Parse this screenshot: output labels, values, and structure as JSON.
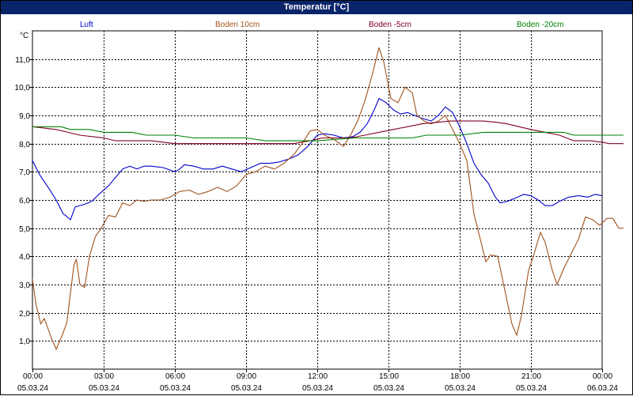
{
  "window": {
    "title": "Temperatur [°C]"
  },
  "colors": {
    "titlebar": "#0a246a",
    "grid": "#000000"
  },
  "chart_data": {
    "type": "line",
    "title": "Temperatur [°C]",
    "ylabel": "°C",
    "xlabel": "",
    "ylim": [
      0,
      12
    ],
    "xlim": [
      0,
      24
    ],
    "grid": true,
    "legend_position": "top",
    "y_ticks": [
      {
        "value": 1,
        "label": "1,0"
      },
      {
        "value": 2,
        "label": "2,0"
      },
      {
        "value": 3,
        "label": "3,0"
      },
      {
        "value": 4,
        "label": "4,0"
      },
      {
        "value": 5,
        "label": "5,0"
      },
      {
        "value": 6,
        "label": "6,0"
      },
      {
        "value": 7,
        "label": "7,0"
      },
      {
        "value": 8,
        "label": "8,0"
      },
      {
        "value": 9,
        "label": "9,0"
      },
      {
        "value": 10,
        "label": "10,0"
      },
      {
        "value": 11,
        "label": "11,0"
      }
    ],
    "x_ticks": [
      {
        "value": 0,
        "time": "00:00",
        "date": "05.03.24"
      },
      {
        "value": 3,
        "time": "03:00",
        "date": "05.03.24"
      },
      {
        "value": 6,
        "time": "06:00",
        "date": "05.03.24"
      },
      {
        "value": 9,
        "time": "09:00",
        "date": "05.03.24"
      },
      {
        "value": 12,
        "time": "12:00",
        "date": "05.03.24"
      },
      {
        "value": 15,
        "time": "15:00",
        "date": "05.03.24"
      },
      {
        "value": 18,
        "time": "18:00",
        "date": "05.03.24"
      },
      {
        "value": 21,
        "time": "21:00",
        "date": "05.03.24"
      },
      {
        "value": 24,
        "time": "00:00",
        "date": "06.03.24"
      }
    ],
    "series": [
      {
        "name": "Luft",
        "color": "#0000cc",
        "points": [
          [
            0,
            7.4
          ],
          [
            0.3,
            6.9
          ],
          [
            0.7,
            6.4
          ],
          [
            1,
            6
          ],
          [
            1.3,
            5.5
          ],
          [
            1.4,
            5.45
          ],
          [
            1.6,
            5.3
          ],
          [
            1.8,
            5.75
          ],
          [
            2.2,
            5.85
          ],
          [
            2.5,
            5.95
          ],
          [
            2.8,
            6.2
          ],
          [
            3.2,
            6.5
          ],
          [
            3.5,
            6.8
          ],
          [
            3.7,
            7.0
          ],
          [
            3.8,
            7.1
          ],
          [
            4.1,
            7.2
          ],
          [
            4.4,
            7.1
          ],
          [
            4.7,
            7.2
          ],
          [
            5,
            7.2
          ],
          [
            5.5,
            7.15
          ],
          [
            6,
            7.0
          ],
          [
            6.2,
            7.1
          ],
          [
            6.4,
            7.25
          ],
          [
            6.8,
            7.2
          ],
          [
            7.2,
            7.1
          ],
          [
            7.6,
            7.1
          ],
          [
            8.0,
            7.2
          ],
          [
            8.4,
            7.1
          ],
          [
            8.8,
            7.0
          ],
          [
            9.2,
            7.15
          ],
          [
            9.6,
            7.3
          ],
          [
            10.0,
            7.3
          ],
          [
            10.4,
            7.35
          ],
          [
            10.8,
            7.45
          ],
          [
            11.2,
            7.6
          ],
          [
            11.6,
            7.9
          ],
          [
            12.0,
            8.3
          ],
          [
            12.3,
            8.35
          ],
          [
            12.7,
            8.3
          ],
          [
            13.1,
            8.2
          ],
          [
            13.5,
            8.25
          ],
          [
            13.8,
            8.4
          ],
          [
            14.1,
            8.7
          ],
          [
            14.4,
            9.2
          ],
          [
            14.6,
            9.6
          ],
          [
            14.9,
            9.45
          ],
          [
            15.2,
            9.2
          ],
          [
            15.5,
            9.05
          ],
          [
            15.8,
            9.1
          ],
          [
            16.1,
            9.0
          ],
          [
            16.4,
            8.9
          ],
          [
            16.8,
            8.8
          ],
          [
            17.1,
            9.0
          ],
          [
            17.4,
            9.3
          ],
          [
            17.7,
            9.1
          ],
          [
            18.0,
            8.6
          ],
          [
            18.3,
            8.0
          ],
          [
            18.6,
            7.3
          ],
          [
            18.9,
            6.9
          ],
          [
            19.2,
            6.6
          ],
          [
            19.5,
            6.1
          ],
          [
            19.7,
            5.9
          ],
          [
            20.0,
            5.95
          ],
          [
            20.3,
            6.05
          ],
          [
            20.7,
            6.2
          ],
          [
            21.0,
            6.15
          ],
          [
            21.3,
            6.0
          ],
          [
            21.6,
            5.8
          ],
          [
            21.9,
            5.8
          ],
          [
            22.2,
            5.95
          ],
          [
            22.6,
            6.1
          ],
          [
            23.0,
            6.15
          ],
          [
            23.4,
            6.1
          ],
          [
            23.7,
            6.2
          ],
          [
            24,
            6.15
          ]
        ]
      },
      {
        "name": "Boden 10cm",
        "color": "#a0521e",
        "points": [
          [
            0,
            3.2
          ],
          [
            0.15,
            2.3
          ],
          [
            0.35,
            1.6
          ],
          [
            0.5,
            1.8
          ],
          [
            0.8,
            1.1
          ],
          [
            1.0,
            0.7
          ],
          [
            1.25,
            1.2
          ],
          [
            1.45,
            1.65
          ],
          [
            1.6,
            2.7
          ],
          [
            1.75,
            3.7
          ],
          [
            1.85,
            3.9
          ],
          [
            2.0,
            3.0
          ],
          [
            2.2,
            2.9
          ],
          [
            2.4,
            4.0
          ],
          [
            2.65,
            4.7
          ],
          [
            2.9,
            5.0
          ],
          [
            3.2,
            5.45
          ],
          [
            3.5,
            5.4
          ],
          [
            3.8,
            5.9
          ],
          [
            4.1,
            5.8
          ],
          [
            4.4,
            6.0
          ],
          [
            4.7,
            5.95
          ],
          [
            5.0,
            6.0
          ],
          [
            5.4,
            6.0
          ],
          [
            5.8,
            6.1
          ],
          [
            6.2,
            6.3
          ],
          [
            6.6,
            6.35
          ],
          [
            7.0,
            6.2
          ],
          [
            7.4,
            6.3
          ],
          [
            7.8,
            6.45
          ],
          [
            8.2,
            6.3
          ],
          [
            8.6,
            6.5
          ],
          [
            9.0,
            6.9
          ],
          [
            9.4,
            7.0
          ],
          [
            9.8,
            7.2
          ],
          [
            10.2,
            7.1
          ],
          [
            10.6,
            7.3
          ],
          [
            11.0,
            7.6
          ],
          [
            11.4,
            8.05
          ],
          [
            11.7,
            8.45
          ],
          [
            12.0,
            8.5
          ],
          [
            12.3,
            8.3
          ],
          [
            12.7,
            8.15
          ],
          [
            13.1,
            7.9
          ],
          [
            13.4,
            8.3
          ],
          [
            13.7,
            8.8
          ],
          [
            14.0,
            9.5
          ],
          [
            14.3,
            10.4
          ],
          [
            14.6,
            11.4
          ],
          [
            14.8,
            10.9
          ],
          [
            15.1,
            9.6
          ],
          [
            15.4,
            9.45
          ],
          [
            15.7,
            10.0
          ],
          [
            16.0,
            9.8
          ],
          [
            16.2,
            9.0
          ],
          [
            16.5,
            8.8
          ],
          [
            16.8,
            8.7
          ],
          [
            17.1,
            8.8
          ],
          [
            17.4,
            9.0
          ],
          [
            17.7,
            8.5
          ],
          [
            18.0,
            8.0
          ],
          [
            18.3,
            7.4
          ],
          [
            18.6,
            5.5
          ],
          [
            18.9,
            4.5
          ],
          [
            19.1,
            3.8
          ],
          [
            19.3,
            4.05
          ],
          [
            19.6,
            4.0
          ],
          [
            19.9,
            2.8
          ],
          [
            20.2,
            1.6
          ],
          [
            20.4,
            1.2
          ],
          [
            20.6,
            1.9
          ],
          [
            20.9,
            3.5
          ],
          [
            21.1,
            4.0
          ],
          [
            21.4,
            4.85
          ],
          [
            21.6,
            4.5
          ],
          [
            21.9,
            3.5
          ],
          [
            22.1,
            3.0
          ],
          [
            22.4,
            3.6
          ],
          [
            22.7,
            4.1
          ],
          [
            23.0,
            4.6
          ],
          [
            23.3,
            5.4
          ],
          [
            23.6,
            5.3
          ],
          [
            23.9,
            5.1
          ],
          [
            24.2,
            5.35
          ],
          [
            24.45,
            5.35
          ],
          [
            24.7,
            5.0
          ],
          [
            24.9,
            5.0
          ]
        ]
      },
      {
        "name": "Boden -5cm",
        "color": "#800020",
        "points": [
          [
            0,
            8.6
          ],
          [
            1.0,
            8.5
          ],
          [
            1.5,
            8.4
          ],
          [
            2.0,
            8.3
          ],
          [
            3.0,
            8.2
          ],
          [
            3.5,
            8.1
          ],
          [
            5.0,
            8.1
          ],
          [
            6.0,
            8.0
          ],
          [
            9.0,
            8.0
          ],
          [
            11.0,
            8.0
          ],
          [
            11.7,
            8.1
          ],
          [
            12.2,
            8.2
          ],
          [
            13.0,
            8.2
          ],
          [
            13.4,
            8.2
          ],
          [
            14.0,
            8.3
          ],
          [
            14.6,
            8.4
          ],
          [
            15.2,
            8.5
          ],
          [
            15.8,
            8.6
          ],
          [
            16.4,
            8.7
          ],
          [
            17.0,
            8.75
          ],
          [
            17.6,
            8.8
          ],
          [
            18.4,
            8.8
          ],
          [
            19.0,
            8.8
          ],
          [
            19.6,
            8.75
          ],
          [
            20.0,
            8.7
          ],
          [
            20.5,
            8.6
          ],
          [
            21.0,
            8.5
          ],
          [
            21.6,
            8.4
          ],
          [
            22.2,
            8.3
          ],
          [
            22.8,
            8.1
          ],
          [
            23.5,
            8.1
          ],
          [
            24,
            8.05
          ],
          [
            24.3,
            8.0
          ],
          [
            24.9,
            8.0
          ]
        ]
      },
      {
        "name": "Boden -20cm",
        "color": "#008000",
        "points": [
          [
            0,
            8.6
          ],
          [
            1.2,
            8.6
          ],
          [
            1.6,
            8.5
          ],
          [
            2.4,
            8.5
          ],
          [
            3.0,
            8.4
          ],
          [
            4.2,
            8.4
          ],
          [
            4.8,
            8.3
          ],
          [
            6.0,
            8.3
          ],
          [
            6.8,
            8.2
          ],
          [
            9.0,
            8.2
          ],
          [
            9.8,
            8.1
          ],
          [
            11.0,
            8.1
          ],
          [
            12.0,
            8.1
          ],
          [
            13.6,
            8.2
          ],
          [
            15.0,
            8.2
          ],
          [
            16.0,
            8.2
          ],
          [
            16.6,
            8.3
          ],
          [
            18.0,
            8.3
          ],
          [
            19.0,
            8.4
          ],
          [
            21.0,
            8.4
          ],
          [
            22.4,
            8.4
          ],
          [
            22.8,
            8.3
          ],
          [
            24,
            8.3
          ],
          [
            24.9,
            8.3
          ]
        ]
      }
    ]
  }
}
